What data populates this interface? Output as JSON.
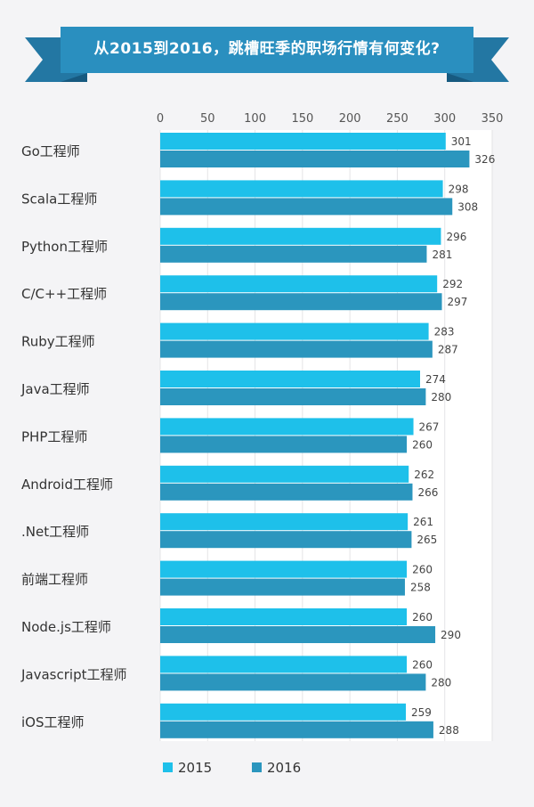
{
  "chart_data": {
    "type": "bar",
    "orientation": "horizontal",
    "title": "从2015到2016，跳槽旺季的职场行情有何变化?",
    "xlim": [
      0,
      350
    ],
    "xticks": [
      0,
      50,
      100,
      150,
      200,
      250,
      300,
      350
    ],
    "grid": true,
    "legend_position": "bottom-left",
    "categories": [
      "Go工程师",
      "Scala工程师",
      "Python工程师",
      "C/C++工程师",
      "Ruby工程师",
      "Java工程师",
      "PHP工程师",
      "Android工程师",
      ".Net工程师",
      "前端工程师",
      "Node.js工程师",
      "Javascript工程师",
      "iOS工程师"
    ],
    "series": [
      {
        "name": "2015",
        "color": "#1ec0ea",
        "values": [
          301,
          298,
          296,
          292,
          283,
          274,
          267,
          262,
          261,
          260,
          260,
          260,
          259
        ]
      },
      {
        "name": "2016",
        "color": "#2b96be",
        "values": [
          326,
          308,
          281,
          297,
          287,
          280,
          260,
          266,
          265,
          258,
          290,
          280,
          288
        ]
      }
    ]
  },
  "colors": {
    "banner_front": "#2a8fbf",
    "banner_back": "#2377a3",
    "banner_fold": "#175a80",
    "plot_bg": "#ffffff",
    "grid": "#e4e4e6",
    "background": "#f4f4f6"
  }
}
